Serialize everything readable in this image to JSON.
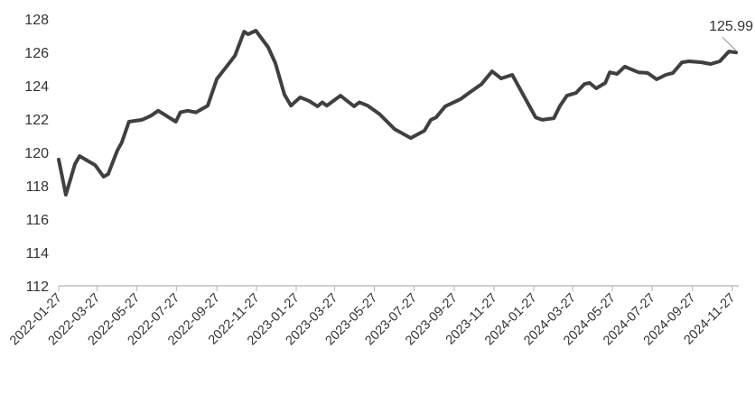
{
  "chart_data": {
    "type": "line",
    "title": "",
    "xlabel": "",
    "ylabel": "",
    "ylim": [
      112,
      128
    ],
    "yticks": [
      112,
      114,
      116,
      118,
      120,
      122,
      124,
      126,
      128
    ],
    "xticks": [
      "2022-01-27",
      "2022-03-27",
      "2022-05-27",
      "2022-07-27",
      "2022-09-27",
      "2022-11-27",
      "2023-01-27",
      "2023-03-27",
      "2023-05-27",
      "2023-07-27",
      "2023-09-27",
      "2023-11-27",
      "2024-01-27",
      "2024-03-27",
      "2024-05-27",
      "2024-07-27",
      "2024-09-27",
      "2024-11-27"
    ],
    "xlim": [
      "2022-01-27",
      "2024-12-03"
    ],
    "grid": false,
    "line_color": "#404040",
    "annotation": {
      "text": "125.99",
      "date": "2024-12-03",
      "value": 125.99
    },
    "series": [
      {
        "points": [
          [
            "2022-01-27",
            119.57
          ],
          [
            "2022-02-07",
            117.46
          ],
          [
            "2022-02-21",
            119.3
          ],
          [
            "2022-02-28",
            119.78
          ],
          [
            "2022-03-24",
            119.24
          ],
          [
            "2022-04-06",
            118.54
          ],
          [
            "2022-04-13",
            118.7
          ],
          [
            "2022-04-27",
            120.1
          ],
          [
            "2022-05-04",
            120.6
          ],
          [
            "2022-05-15",
            121.84
          ],
          [
            "2022-06-04",
            121.95
          ],
          [
            "2022-06-18",
            122.2
          ],
          [
            "2022-06-29",
            122.5
          ],
          [
            "2022-07-26",
            121.84
          ],
          [
            "2022-08-02",
            122.4
          ],
          [
            "2022-08-13",
            122.5
          ],
          [
            "2022-08-26",
            122.4
          ],
          [
            "2022-09-13",
            122.8
          ],
          [
            "2022-09-27",
            124.4
          ],
          [
            "2022-10-11",
            125.1
          ],
          [
            "2022-10-25",
            125.8
          ],
          [
            "2022-11-08",
            127.24
          ],
          [
            "2022-11-14",
            127.08
          ],
          [
            "2022-11-26",
            127.3
          ],
          [
            "2022-12-15",
            126.3
          ],
          [
            "2022-12-26",
            125.35
          ],
          [
            "2023-01-09",
            123.46
          ],
          [
            "2023-01-19",
            122.8
          ],
          [
            "2023-02-02",
            123.3
          ],
          [
            "2023-02-15",
            123.1
          ],
          [
            "2023-03-01",
            122.76
          ],
          [
            "2023-03-08",
            123.0
          ],
          [
            "2023-03-15",
            122.8
          ],
          [
            "2023-03-22",
            123.0
          ],
          [
            "2023-04-05",
            123.4
          ],
          [
            "2023-04-26",
            122.76
          ],
          [
            "2023-05-04",
            123.0
          ],
          [
            "2023-05-17",
            122.8
          ],
          [
            "2023-06-04",
            122.3
          ],
          [
            "2023-06-27",
            121.4
          ],
          [
            "2023-07-22",
            120.86
          ],
          [
            "2023-08-12",
            121.3
          ],
          [
            "2023-08-22",
            121.95
          ],
          [
            "2023-08-30",
            122.1
          ],
          [
            "2023-09-13",
            122.76
          ],
          [
            "2023-10-07",
            123.2
          ],
          [
            "2023-10-21",
            123.6
          ],
          [
            "2023-11-08",
            124.1
          ],
          [
            "2023-11-24",
            124.86
          ],
          [
            "2023-12-08",
            124.43
          ],
          [
            "2023-12-25",
            124.65
          ],
          [
            "2024-01-30",
            122.1
          ],
          [
            "2024-02-09",
            121.95
          ],
          [
            "2024-02-27",
            122.05
          ],
          [
            "2024-03-07",
            122.76
          ],
          [
            "2024-03-18",
            123.4
          ],
          [
            "2024-04-01",
            123.56
          ],
          [
            "2024-04-14",
            124.1
          ],
          [
            "2024-04-22",
            124.16
          ],
          [
            "2024-05-02",
            123.84
          ],
          [
            "2024-05-16",
            124.16
          ],
          [
            "2024-05-23",
            124.8
          ],
          [
            "2024-06-03",
            124.7
          ],
          [
            "2024-06-15",
            125.14
          ],
          [
            "2024-07-06",
            124.8
          ],
          [
            "2024-07-20",
            124.76
          ],
          [
            "2024-08-03",
            124.38
          ],
          [
            "2024-08-17",
            124.65
          ],
          [
            "2024-08-28",
            124.76
          ],
          [
            "2024-09-11",
            125.4
          ],
          [
            "2024-09-22",
            125.46
          ],
          [
            "2024-10-11",
            125.4
          ],
          [
            "2024-10-25",
            125.3
          ],
          [
            "2024-11-08",
            125.46
          ],
          [
            "2024-11-22",
            126.05
          ],
          [
            "2024-12-03",
            125.99
          ]
        ]
      }
    ]
  }
}
